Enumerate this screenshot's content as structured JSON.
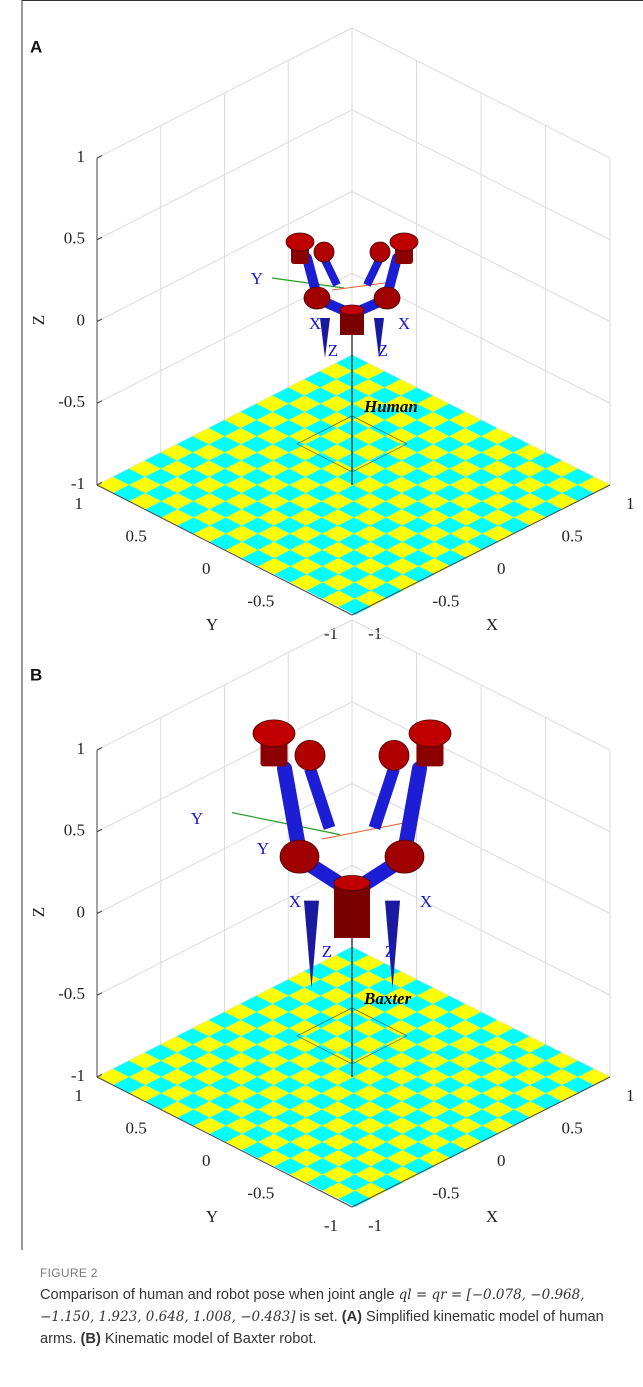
{
  "panels": [
    {
      "label": "A",
      "z_title": "Z",
      "y_title": "Y",
      "x_title": "X",
      "z_ticks": [
        "1",
        "0.5",
        "0",
        "-0.5",
        "-1"
      ],
      "y_ticks": [
        "1",
        "0.5",
        "0",
        "-0.5",
        "-1"
      ],
      "x_ticks": [
        "-1",
        "-0.5",
        "0",
        "0.5",
        "1"
      ],
      "annotation": "Human",
      "frame_labels": [
        "Y",
        "X",
        "X",
        "Z",
        "Z"
      ]
    },
    {
      "label": "B",
      "z_title": "Z",
      "y_title": "Y",
      "x_title": "X",
      "z_ticks": [
        "1",
        "0.5",
        "0",
        "-0.5",
        "-1"
      ],
      "y_ticks": [
        "1",
        "0.5",
        "0",
        "-0.5",
        "-1"
      ],
      "x_ticks": [
        "-1",
        "-0.5",
        "0",
        "0.5",
        "1"
      ],
      "annotation": "Baxter",
      "frame_labels": [
        "Y",
        "Y",
        "X",
        "X",
        "Z",
        "Z"
      ]
    }
  ],
  "caption": {
    "label": "FIGURE 2",
    "intro": "Comparison of human and robot pose when joint angle",
    "math": "ql = qr = [−0.078, −0.968, −1.150, 1.923, 0.648, 1.008, −0.483]",
    "tail": "is set.",
    "a_tag": "(A)",
    "a_text": "Simplified kinematic model of human arms.",
    "b_tag": "(B)",
    "b_text": "Kinematic model of Baxter robot."
  }
}
